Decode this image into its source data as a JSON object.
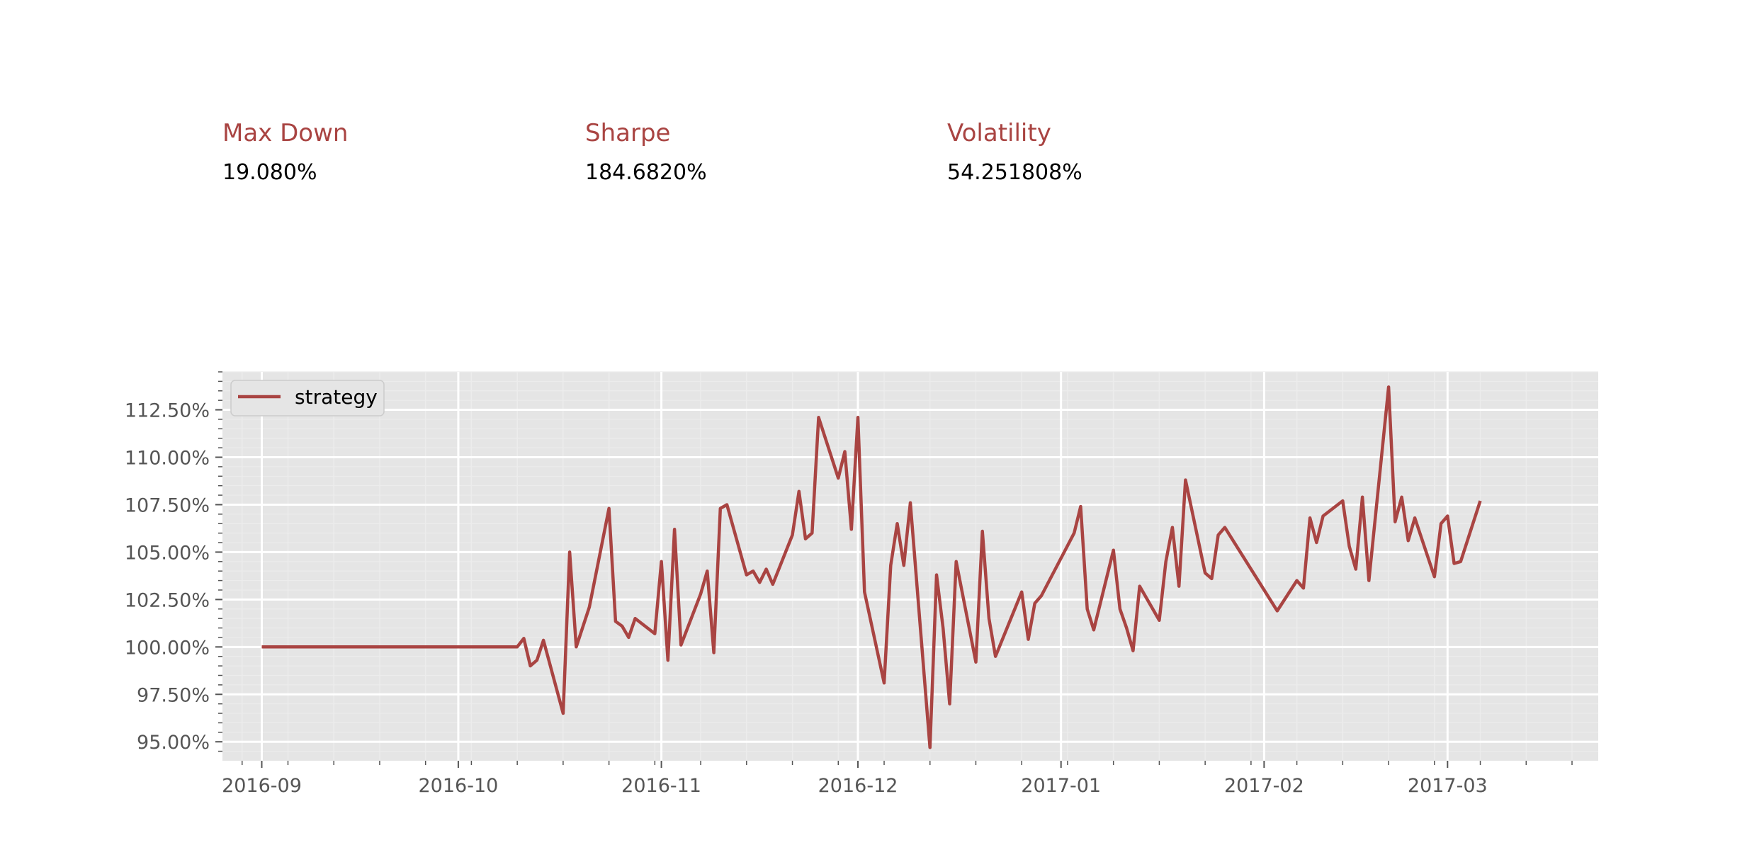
{
  "metrics": [
    {
      "label": "Max Down",
      "value": "19.080%"
    },
    {
      "label": "Sharpe",
      "value": "184.6820%"
    },
    {
      "label": "Volatility",
      "value": "54.251808%"
    }
  ],
  "colors": {
    "series": "#a94442",
    "plot_background": "#e5e5e5",
    "grid_major": "#ffffff",
    "tick_text": "#555555"
  },
  "chart_data": {
    "type": "line",
    "title": "",
    "xlabel": "",
    "ylabel": "",
    "grid": true,
    "legend": "top-left",
    "xlim": [
      "2016-08-26",
      "2017-03-24"
    ],
    "ylim": [
      94.0,
      114.5
    ],
    "x_tick_labels": [
      "2016-09",
      "2016-10",
      "2016-11",
      "2016-12",
      "2017-01",
      "2017-02",
      "2017-03"
    ],
    "y_tick_labels": [
      "95.00%",
      "97.50%",
      "100.00%",
      "102.50%",
      "105.00%",
      "107.50%",
      "110.00%",
      "112.50%"
    ],
    "x_ticks": [
      "2016-09-01",
      "2016-10-01",
      "2016-11-01",
      "2016-12-01",
      "2017-01-01",
      "2017-02-01",
      "2017-03-01"
    ],
    "y_ticks": [
      95,
      97.5,
      100,
      102.5,
      105,
      107.5,
      110,
      112.5
    ],
    "series": [
      {
        "name": "strategy",
        "x": [
          "2016-09-01",
          "2016-10-10",
          "2016-10-11",
          "2016-10-12",
          "2016-10-13",
          "2016-10-14",
          "2016-10-17",
          "2016-10-18",
          "2016-10-19",
          "2016-10-21",
          "2016-10-24",
          "2016-10-25",
          "2016-10-26",
          "2016-10-27",
          "2016-10-28",
          "2016-10-31",
          "2016-11-01",
          "2016-11-02",
          "2016-11-03",
          "2016-11-04",
          "2016-11-07",
          "2016-11-08",
          "2016-11-09",
          "2016-11-10",
          "2016-11-11",
          "2016-11-14",
          "2016-11-15",
          "2016-11-16",
          "2016-11-17",
          "2016-11-18",
          "2016-11-21",
          "2016-11-22",
          "2016-11-23",
          "2016-11-24",
          "2016-11-25",
          "2016-11-28",
          "2016-11-29",
          "2016-11-30",
          "2016-12-01",
          "2016-12-02",
          "2016-12-05",
          "2016-12-06",
          "2016-12-07",
          "2016-12-08",
          "2016-12-09",
          "2016-12-12",
          "2016-12-13",
          "2016-12-14",
          "2016-12-15",
          "2016-12-16",
          "2016-12-19",
          "2016-12-20",
          "2016-12-21",
          "2016-12-22",
          "2016-12-26",
          "2016-12-27",
          "2016-12-28",
          "2016-12-29",
          "2017-01-03",
          "2017-01-04",
          "2017-01-05",
          "2017-01-06",
          "2017-01-09",
          "2017-01-10",
          "2017-01-11",
          "2017-01-12",
          "2017-01-13",
          "2017-01-16",
          "2017-01-17",
          "2017-01-18",
          "2017-01-19",
          "2017-01-20",
          "2017-01-23",
          "2017-01-24",
          "2017-01-25",
          "2017-01-26",
          "2017-02-03",
          "2017-02-06",
          "2017-02-07",
          "2017-02-08",
          "2017-02-09",
          "2017-02-10",
          "2017-02-13",
          "2017-02-14",
          "2017-02-15",
          "2017-02-16",
          "2017-02-17",
          "2017-02-20",
          "2017-02-21",
          "2017-02-22",
          "2017-02-23",
          "2017-02-24",
          "2017-02-27",
          "2017-02-28",
          "2017-03-01",
          "2017-03-02",
          "2017-03-03",
          "2017-03-06"
        ],
        "values": [
          100.0,
          100.0,
          100.45,
          99.0,
          99.3,
          100.35,
          96.5,
          105.0,
          100.0,
          102.1,
          107.3,
          101.35,
          101.1,
          100.5,
          101.5,
          100.7,
          104.5,
          99.3,
          106.2,
          100.1,
          102.8,
          104.0,
          99.7,
          107.3,
          107.5,
          103.8,
          104.0,
          103.4,
          104.1,
          103.3,
          105.9,
          108.2,
          105.7,
          106.0,
          112.1,
          108.9,
          110.3,
          106.2,
          112.1,
          102.9,
          98.1,
          104.3,
          106.5,
          104.3,
          107.6,
          94.7,
          103.8,
          101.0,
          97.0,
          104.5,
          99.2,
          106.1,
          101.5,
          99.5,
          102.9,
          100.4,
          102.3,
          102.7,
          106.0,
          107.4,
          102.0,
          100.9,
          105.1,
          102.0,
          101.0,
          99.8,
          103.2,
          101.4,
          104.5,
          106.3,
          103.2,
          108.8,
          103.9,
          103.6,
          105.9,
          106.3,
          101.9,
          103.5,
          103.1,
          106.8,
          105.5,
          106.9,
          107.7,
          105.3,
          104.1,
          107.9,
          103.5,
          113.7,
          106.6,
          107.9,
          105.6,
          106.8,
          103.7,
          106.5,
          106.9,
          104.4,
          104.5,
          107.7
        ]
      }
    ]
  }
}
